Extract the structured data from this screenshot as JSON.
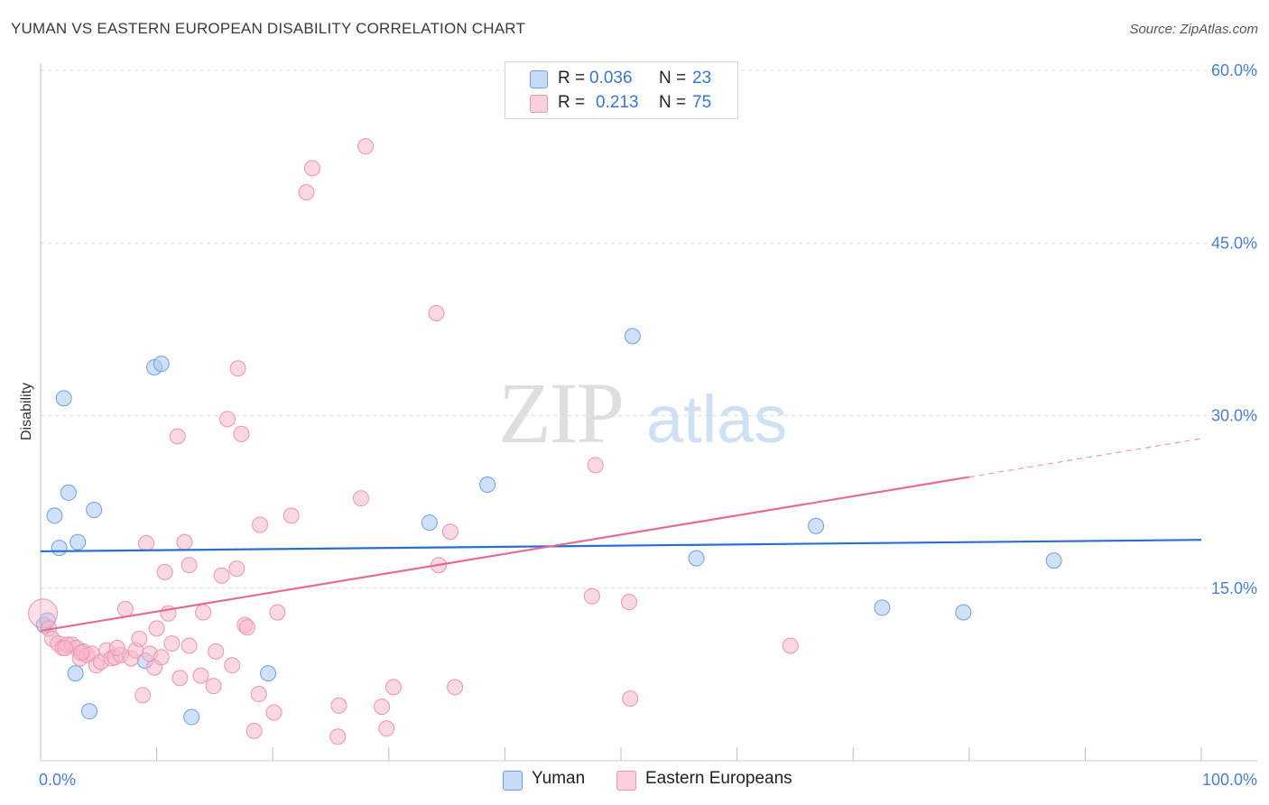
{
  "title": "YUMAN VS EASTERN EUROPEAN DISABILITY CORRELATION CHART",
  "source": "Source: ZipAtlas.com",
  "watermark": {
    "zip": "ZIP",
    "atlas": "atlas"
  },
  "legend": {
    "rows": [
      {
        "r_label": "R = ",
        "r_value": "0.036",
        "n_label": "N = ",
        "n_value": "23",
        "color": "#aac8f0"
      },
      {
        "r_label": "R = ",
        "r_value": "0.213",
        "n_label": "N = ",
        "n_value": "75",
        "color": "#f6b8cb"
      }
    ]
  },
  "bottom_legend": [
    {
      "label": "Yuman",
      "color": "#aac8f0"
    },
    {
      "label": "Eastern Europeans",
      "color": "#f6b8cb"
    }
  ],
  "colors": {
    "yuman_fill": "#aac8f0",
    "yuman_stroke": "#6e9fe0",
    "yuman_line": "#2a6fcf",
    "ee_fill": "#f6b8cb",
    "ee_stroke": "#ee93b0",
    "ee_line": "#e66a95",
    "grid": "#dddddd",
    "axis_text": "#4a7fd0"
  },
  "chart_data": {
    "type": "scatter",
    "title": "YUMAN VS EASTERN EUROPEAN DISABILITY CORRELATION CHART",
    "xlabel": "",
    "ylabel": "Disability",
    "xlim": [
      0,
      100
    ],
    "ylim": [
      0,
      62
    ],
    "y_ticks": [
      15,
      30,
      45,
      60
    ],
    "y_tick_labels": [
      "15.0%",
      "30.0%",
      "45.0%",
      "60.0%"
    ],
    "x_tick_labels": [
      "0.0%",
      "100.0%"
    ],
    "grid": true,
    "series": [
      {
        "name": "Yuman",
        "R": 0.036,
        "N": 23,
        "trend": {
          "x0": 0,
          "y0": 18.2,
          "x1": 100,
          "y1": 19.2,
          "solid_until": 100
        },
        "points": [
          {
            "x": 0.3,
            "y": 11.8
          },
          {
            "x": 0.6,
            "y": 12.2
          },
          {
            "x": 1.2,
            "y": 21.3
          },
          {
            "x": 1.6,
            "y": 18.5
          },
          {
            "x": 2.0,
            "y": 31.5
          },
          {
            "x": 2.4,
            "y": 23.3
          },
          {
            "x": 3.2,
            "y": 19.0
          },
          {
            "x": 3.0,
            "y": 7.6
          },
          {
            "x": 4.2,
            "y": 4.3
          },
          {
            "x": 4.6,
            "y": 21.8
          },
          {
            "x": 9.0,
            "y": 8.7
          },
          {
            "x": 9.8,
            "y": 34.2
          },
          {
            "x": 10.4,
            "y": 34.5
          },
          {
            "x": 13.0,
            "y": 3.8
          },
          {
            "x": 19.6,
            "y": 7.6
          },
          {
            "x": 33.5,
            "y": 20.7
          },
          {
            "x": 38.5,
            "y": 24.0
          },
          {
            "x": 51.0,
            "y": 36.9
          },
          {
            "x": 56.5,
            "y": 17.6
          },
          {
            "x": 66.8,
            "y": 20.4
          },
          {
            "x": 72.5,
            "y": 13.3
          },
          {
            "x": 79.5,
            "y": 12.9
          },
          {
            "x": 87.3,
            "y": 17.4
          }
        ]
      },
      {
        "name": "Eastern Europeans",
        "R": 0.213,
        "N": 75,
        "trend": {
          "x0": 0,
          "y0": 11.3,
          "x1": 100,
          "y1": 28.0,
          "solid_until": 80
        },
        "points": [
          {
            "x": 0.2,
            "y": 12.8,
            "big": true
          },
          {
            "x": 0.7,
            "y": 11.5
          },
          {
            "x": 1.0,
            "y": 10.6
          },
          {
            "x": 1.5,
            "y": 10.2
          },
          {
            "x": 1.9,
            "y": 9.8
          },
          {
            "x": 2.3,
            "y": 10.1
          },
          {
            "x": 2.7,
            "y": 10.1
          },
          {
            "x": 3.1,
            "y": 9.8
          },
          {
            "x": 3.4,
            "y": 8.9
          },
          {
            "x": 3.7,
            "y": 9.5
          },
          {
            "x": 4.0,
            "y": 9.2
          },
          {
            "x": 4.4,
            "y": 9.3
          },
          {
            "x": 4.8,
            "y": 8.3
          },
          {
            "x": 5.2,
            "y": 8.6
          },
          {
            "x": 5.7,
            "y": 9.6
          },
          {
            "x": 6.1,
            "y": 8.9
          },
          {
            "x": 6.4,
            "y": 9.0
          },
          {
            "x": 6.9,
            "y": 9.2
          },
          {
            "x": 7.3,
            "y": 13.2
          },
          {
            "x": 7.8,
            "y": 8.9
          },
          {
            "x": 8.2,
            "y": 9.6
          },
          {
            "x": 8.5,
            "y": 10.6
          },
          {
            "x": 8.8,
            "y": 5.7
          },
          {
            "x": 9.1,
            "y": 18.9
          },
          {
            "x": 9.4,
            "y": 9.3
          },
          {
            "x": 9.8,
            "y": 8.1
          },
          {
            "x": 10.0,
            "y": 11.5
          },
          {
            "x": 10.4,
            "y": 9.0
          },
          {
            "x": 10.7,
            "y": 16.4
          },
          {
            "x": 11.0,
            "y": 12.8
          },
          {
            "x": 11.3,
            "y": 10.2
          },
          {
            "x": 11.8,
            "y": 28.2
          },
          {
            "x": 12.0,
            "y": 7.2
          },
          {
            "x": 12.4,
            "y": 19.0
          },
          {
            "x": 12.8,
            "y": 17.0
          },
          {
            "x": 12.8,
            "y": 10.0
          },
          {
            "x": 13.8,
            "y": 7.4
          },
          {
            "x": 14.0,
            "y": 12.9
          },
          {
            "x": 14.9,
            "y": 6.5
          },
          {
            "x": 15.6,
            "y": 16.1
          },
          {
            "x": 16.1,
            "y": 29.7
          },
          {
            "x": 16.5,
            "y": 8.3
          },
          {
            "x": 16.9,
            "y": 16.7
          },
          {
            "x": 17.0,
            "y": 34.1
          },
          {
            "x": 17.3,
            "y": 28.4
          },
          {
            "x": 17.6,
            "y": 11.8
          },
          {
            "x": 17.8,
            "y": 11.6
          },
          {
            "x": 18.4,
            "y": 2.6
          },
          {
            "x": 18.8,
            "y": 5.8
          },
          {
            "x": 18.9,
            "y": 20.5
          },
          {
            "x": 20.1,
            "y": 4.2
          },
          {
            "x": 20.4,
            "y": 12.9
          },
          {
            "x": 21.6,
            "y": 21.3
          },
          {
            "x": 22.9,
            "y": 49.4
          },
          {
            "x": 23.4,
            "y": 51.5
          },
          {
            "x": 25.6,
            "y": 2.1
          },
          {
            "x": 25.7,
            "y": 4.8
          },
          {
            "x": 27.6,
            "y": 22.8
          },
          {
            "x": 28.0,
            "y": 53.4
          },
          {
            "x": 29.4,
            "y": 4.7
          },
          {
            "x": 29.8,
            "y": 2.8
          },
          {
            "x": 30.4,
            "y": 6.4
          },
          {
            "x": 34.1,
            "y": 38.9
          },
          {
            "x": 34.3,
            "y": 17.0
          },
          {
            "x": 35.3,
            "y": 19.9
          },
          {
            "x": 35.7,
            "y": 6.4
          },
          {
            "x": 47.5,
            "y": 14.3
          },
          {
            "x": 47.8,
            "y": 25.7
          },
          {
            "x": 50.7,
            "y": 13.8
          },
          {
            "x": 50.8,
            "y": 5.4
          },
          {
            "x": 64.6,
            "y": 10.0
          },
          {
            "x": 3.5,
            "y": 9.4
          },
          {
            "x": 6.6,
            "y": 9.8
          },
          {
            "x": 2.1,
            "y": 9.8
          },
          {
            "x": 15.1,
            "y": 9.5
          }
        ]
      }
    ]
  }
}
